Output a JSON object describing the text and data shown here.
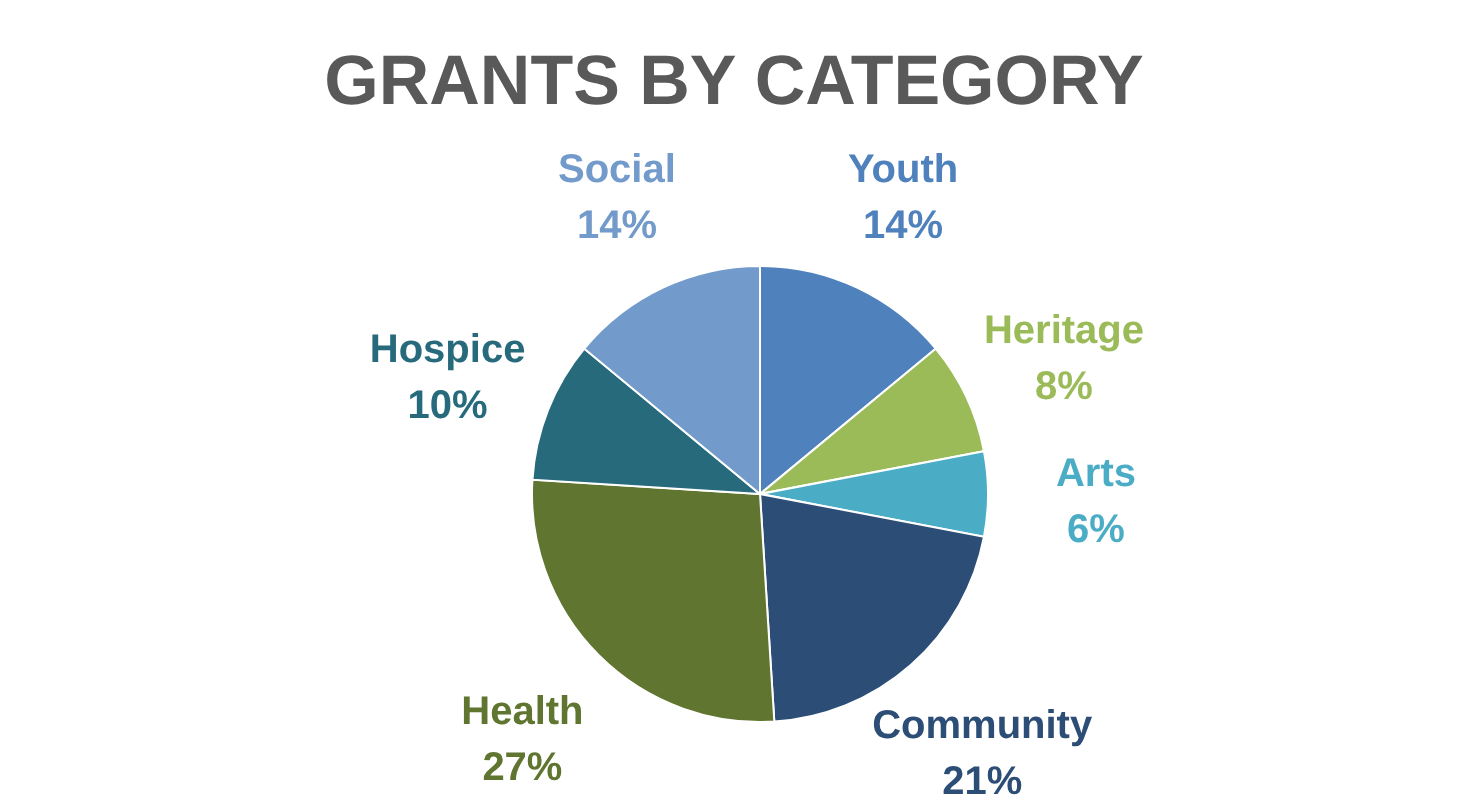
{
  "chart_data": {
    "type": "pie",
    "title": "GRANTS BY CATEGORY",
    "categories": [
      "Youth",
      "Heritage",
      "Arts",
      "Community",
      "Health",
      "Hospice",
      "Social"
    ],
    "values": [
      14,
      8,
      6,
      21,
      27,
      10,
      14
    ],
    "colors": [
      "#4f81bd",
      "#9bbb59",
      "#4bacc6",
      "#2c4d75",
      "#5f7530",
      "#276a7c",
      "#729aca"
    ],
    "value_labels": [
      "14%",
      "8%",
      "6%",
      "21%",
      "27%",
      "10%",
      "14%"
    ],
    "legend": false
  }
}
